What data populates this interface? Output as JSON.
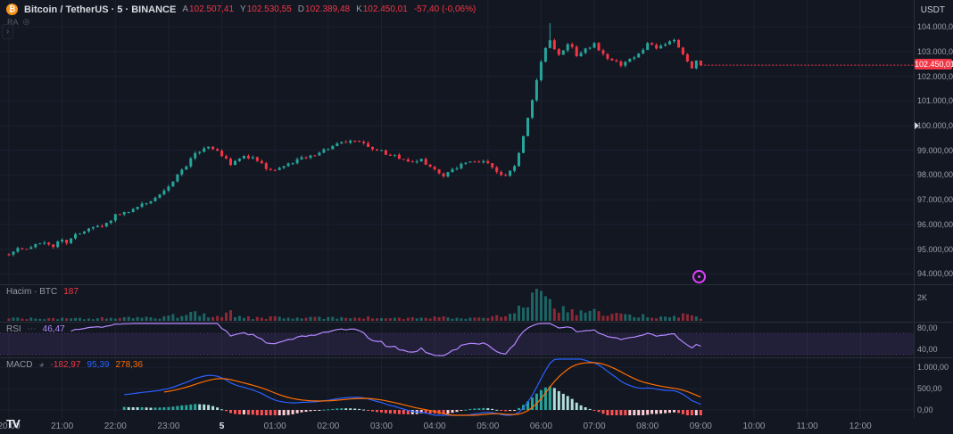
{
  "header": {
    "title": "Bitcoin / TetherUS · 5 · BINANCE",
    "ohlc": [
      {
        "label": "A",
        "value": "102.507,41"
      },
      {
        "label": "Y",
        "value": "102.530,55"
      },
      {
        "label": "D",
        "value": "102.389,48"
      },
      {
        "label": "K",
        "value": "102.450,01"
      }
    ],
    "change": "-57,40 (-0,06%)",
    "sub_legend": "RA",
    "currency_label": "USDT"
  },
  "axes": {
    "price_labels": [
      {
        "text": "104.000,00",
        "price": 104000
      },
      {
        "text": "103.000,00",
        "price": 103000
      },
      {
        "text": "102.000,00",
        "price": 102000
      },
      {
        "text": "101.000,00",
        "price": 101000
      },
      {
        "text": "100.000,00",
        "price": 100000
      },
      {
        "text": "99.000,00",
        "price": 99000
      },
      {
        "text": "98.000,00",
        "price": 98000
      },
      {
        "text": "97.000,00",
        "price": 97000
      },
      {
        "text": "96.000,00",
        "price": 96000
      },
      {
        "text": "95.000,00",
        "price": 95000
      },
      {
        "text": "94.000,00",
        "price": 94000
      }
    ],
    "last_price_tag": {
      "text": "102.450,01",
      "price": 102450.01,
      "color": "#f23645"
    },
    "scale_marker_price": 100000,
    "time_labels": [
      {
        "text": "20:00",
        "i": 0
      },
      {
        "text": "21:00",
        "i": 12
      },
      {
        "text": "22:00",
        "i": 24
      },
      {
        "text": "23:00",
        "i": 36
      },
      {
        "text": "5",
        "i": 48,
        "strong": true
      },
      {
        "text": "01:00",
        "i": 60
      },
      {
        "text": "02:00",
        "i": 72
      },
      {
        "text": "03:00",
        "i": 84
      },
      {
        "text": "04:00",
        "i": 96
      },
      {
        "text": "05:00",
        "i": 108
      },
      {
        "text": "06:00",
        "i": 120
      },
      {
        "text": "07:00",
        "i": 132
      },
      {
        "text": "08:00",
        "i": 144
      },
      {
        "text": "09:00",
        "i": 156
      },
      {
        "text": "10:00",
        "i": 168
      },
      {
        "text": "11:00",
        "i": 180
      },
      {
        "text": "12:00",
        "i": 192
      }
    ]
  },
  "panes": {
    "volume": {
      "label": "Hacim · BTC",
      "value": "187",
      "axis": [
        {
          "text": "2K",
          "v": 2000
        }
      ]
    },
    "rsi": {
      "label": "RSI",
      "value": "46,47",
      "band": [
        30,
        70
      ],
      "axis": [
        {
          "text": "80,00",
          "r": 80
        },
        {
          "text": "40,00",
          "r": 40
        }
      ]
    },
    "macd": {
      "label": "MACD",
      "values": [
        {
          "text": "-182,97",
          "color": "#f23645"
        },
        {
          "text": "95,39",
          "color": "#2962ff"
        },
        {
          "text": "278,36",
          "color": "#ff6d00"
        }
      ],
      "axis": [
        {
          "text": "1.000,00",
          "v": 1000
        },
        {
          "text": "500,00",
          "v": 500
        },
        {
          "text": "0,00",
          "v": 0
        }
      ]
    }
  },
  "branding": {
    "logo_text": "TV"
  },
  "colors": {
    "up": "#26a69a",
    "down": "#f23645",
    "grid": "#1c2130",
    "separator": "#2a2e39",
    "rsi_line": "#b388ff",
    "rsi_band": "rgba(126,87,194,0.14)",
    "macd_line": "#2962ff",
    "macd_signal": "#ff6d00",
    "macd_hist": {
      "up": "#26a69a",
      "up_weak": "#b2dfdb",
      "down": "#ff5252",
      "down_weak": "#ffcdd2"
    },
    "fab_accent": "#e040fb"
  },
  "chart_data": {
    "type": "candlestick+volume+rsi+macd",
    "symbol": "BTCUSDT",
    "exchange": "BINANCE",
    "interval_minutes": 5,
    "time_start": "20:00",
    "time_end": "09:00",
    "day_marker": "5",
    "ylim": [
      94000,
      104500
    ],
    "candle_count": 157,
    "last_close": 102450.01,
    "last_volume": 187,
    "noise_amplitude": 70,
    "wick_amplitude": 80,
    "spike_highs": {
      "122": 104150
    },
    "price_keyframes": [
      [
        0,
        94850
      ],
      [
        2,
        95000
      ],
      [
        4,
        94950
      ],
      [
        6,
        95200
      ],
      [
        8,
        95300
      ],
      [
        10,
        95150
      ],
      [
        12,
        95400
      ],
      [
        13,
        95250
      ],
      [
        15,
        95550
      ],
      [
        18,
        95800
      ],
      [
        21,
        95950
      ],
      [
        24,
        96350
      ],
      [
        27,
        96550
      ],
      [
        30,
        96800
      ],
      [
        33,
        97050
      ],
      [
        36,
        97600
      ],
      [
        39,
        98200
      ],
      [
        42,
        98850
      ],
      [
        45,
        99150
      ],
      [
        47,
        98950
      ],
      [
        50,
        98450
      ],
      [
        53,
        98800
      ],
      [
        56,
        98600
      ],
      [
        58,
        98250
      ],
      [
        60,
        98150
      ],
      [
        63,
        98450
      ],
      [
        66,
        98650
      ],
      [
        69,
        98850
      ],
      [
        72,
        99100
      ],
      [
        75,
        99300
      ],
      [
        78,
        99380
      ],
      [
        81,
        99150
      ],
      [
        84,
        98950
      ],
      [
        87,
        98750
      ],
      [
        90,
        98550
      ],
      [
        93,
        98600
      ],
      [
        96,
        98250
      ],
      [
        98,
        97980
      ],
      [
        100,
        98200
      ],
      [
        102,
        98450
      ],
      [
        105,
        98550
      ],
      [
        108,
        98500
      ],
      [
        110,
        98100
      ],
      [
        112,
        97980
      ],
      [
        114,
        98350
      ],
      [
        115,
        98900
      ],
      [
        116,
        99600
      ],
      [
        117,
        100300
      ],
      [
        118,
        101000
      ],
      [
        119,
        101900
      ],
      [
        120,
        102600
      ],
      [
        121,
        103200
      ],
      [
        122,
        103500
      ],
      [
        123,
        103100
      ],
      [
        124,
        102900
      ],
      [
        125,
        103050
      ],
      [
        126,
        103350
      ],
      [
        127,
        103200
      ],
      [
        128,
        102850
      ],
      [
        129,
        102950
      ],
      [
        130,
        103100
      ],
      [
        132,
        103300
      ],
      [
        134,
        102850
      ],
      [
        136,
        102600
      ],
      [
        138,
        102500
      ],
      [
        140,
        102700
      ],
      [
        142,
        102950
      ],
      [
        144,
        103300
      ],
      [
        146,
        103150
      ],
      [
        148,
        103300
      ],
      [
        150,
        103400
      ],
      [
        152,
        102950
      ],
      [
        154,
        102350
      ],
      [
        155,
        102650
      ],
      [
        156,
        102450
      ]
    ],
    "volume_keyframes": [
      [
        0,
        250
      ],
      [
        6,
        190
      ],
      [
        10,
        170
      ],
      [
        14,
        220
      ],
      [
        20,
        210
      ],
      [
        26,
        260
      ],
      [
        30,
        240
      ],
      [
        34,
        310
      ],
      [
        36,
        520
      ],
      [
        38,
        460
      ],
      [
        40,
        620
      ],
      [
        42,
        700
      ],
      [
        44,
        520
      ],
      [
        46,
        400
      ],
      [
        48,
        360
      ],
      [
        50,
        650
      ],
      [
        52,
        390
      ],
      [
        55,
        260
      ],
      [
        58,
        240
      ],
      [
        60,
        310
      ],
      [
        63,
        260
      ],
      [
        66,
        230
      ],
      [
        70,
        250
      ],
      [
        72,
        300
      ],
      [
        75,
        280
      ],
      [
        78,
        330
      ],
      [
        82,
        260
      ],
      [
        84,
        240
      ],
      [
        88,
        210
      ],
      [
        92,
        230
      ],
      [
        96,
        310
      ],
      [
        100,
        240
      ],
      [
        104,
        210
      ],
      [
        108,
        290
      ],
      [
        110,
        360
      ],
      [
        112,
        310
      ],
      [
        114,
        650
      ],
      [
        115,
        950
      ],
      [
        116,
        1500
      ],
      [
        117,
        2100
      ],
      [
        118,
        2600
      ],
      [
        119,
        2200
      ],
      [
        120,
        1800
      ],
      [
        121,
        1600
      ],
      [
        122,
        1900
      ],
      [
        123,
        1300
      ],
      [
        124,
        1100
      ],
      [
        126,
        950
      ],
      [
        128,
        820
      ],
      [
        130,
        720
      ],
      [
        132,
        760
      ],
      [
        134,
        620
      ],
      [
        136,
        520
      ],
      [
        138,
        460
      ],
      [
        140,
        410
      ],
      [
        142,
        390
      ],
      [
        144,
        430
      ],
      [
        146,
        360
      ],
      [
        148,
        330
      ],
      [
        150,
        390
      ],
      [
        152,
        520
      ],
      [
        154,
        460
      ],
      [
        156,
        190
      ]
    ],
    "indicators": {
      "rsi_period": 14,
      "macd": [
        12,
        26,
        9
      ]
    }
  }
}
